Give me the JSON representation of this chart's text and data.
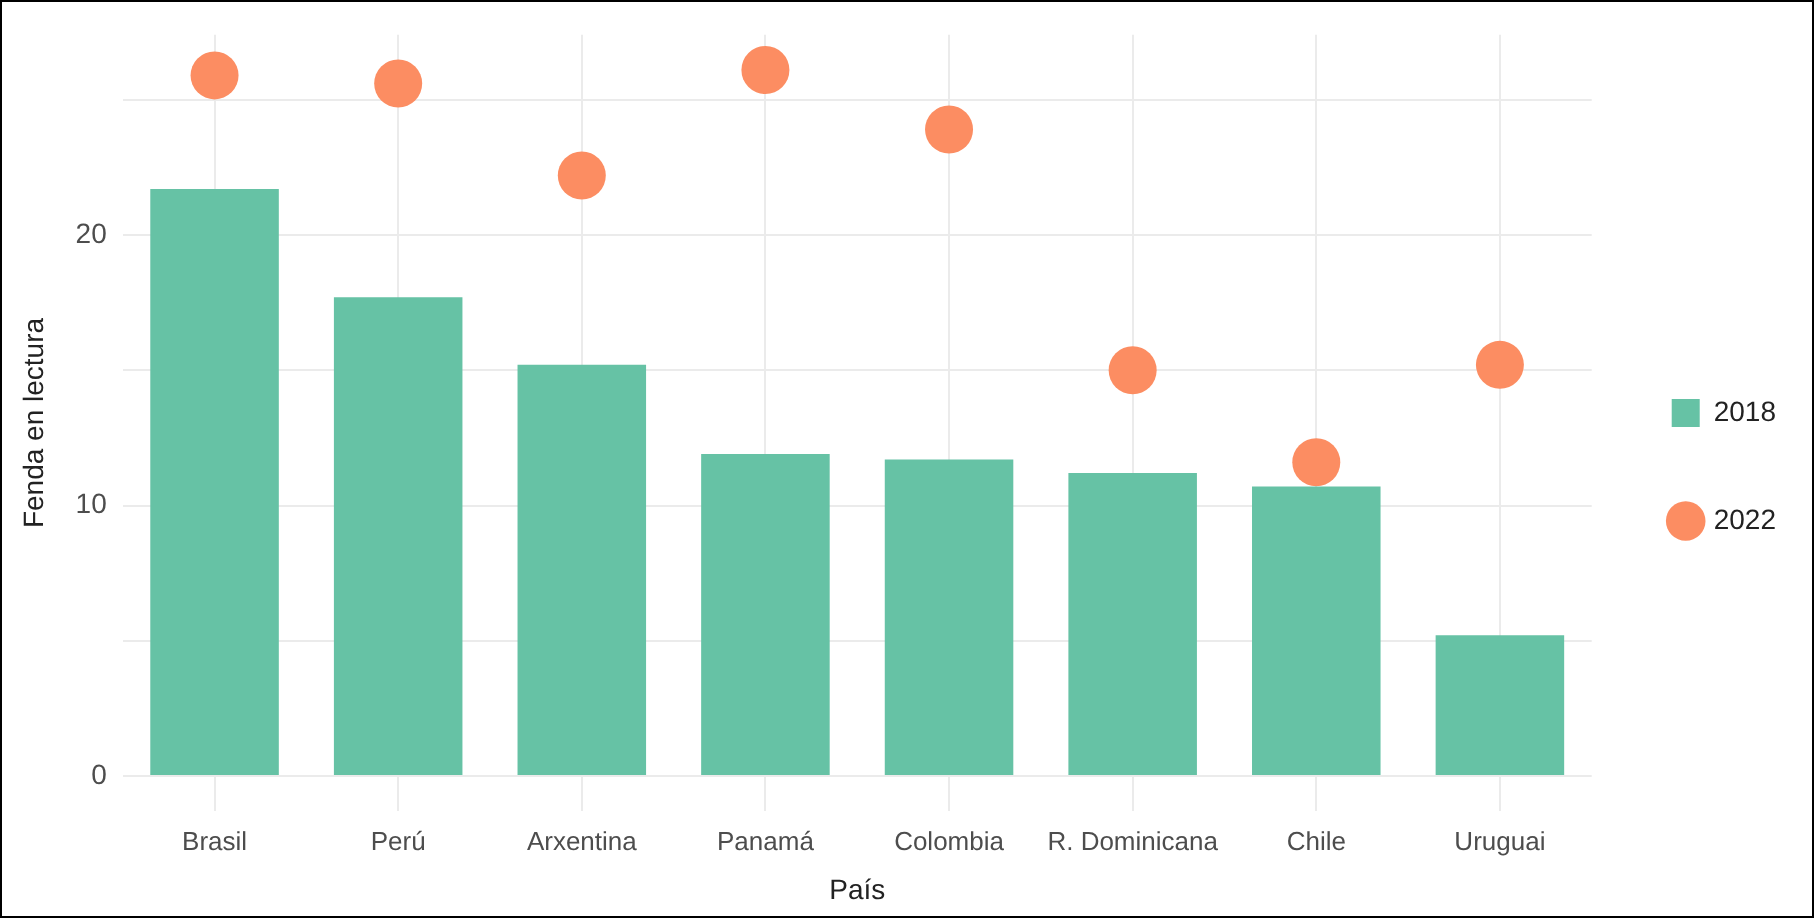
{
  "chart_data": {
    "type": "bar",
    "xlabel": "País",
    "ylabel": "Fenda en lectura",
    "categories": [
      "Brasil",
      "Perú",
      "Arxentina",
      "Panamá",
      "Colombia",
      "R. Dominicana",
      "Chile",
      "Uruguai"
    ],
    "series": [
      {
        "name": "2018",
        "color": "#66c2a5",
        "values": [
          21.7,
          17.7,
          15.2,
          11.9,
          11.7,
          11.2,
          10.7,
          5.2
        ]
      },
      {
        "name": "2022",
        "type": "scatter",
        "color": "#fc8d62",
        "x": [
          "Brasil",
          "Perú",
          "Arxentina",
          "Panamá",
          "Colombia",
          "R. Dominicana",
          "Chile",
          "Uruguai"
        ],
        "values": [
          25.9,
          25.6,
          22.2,
          26.1,
          23.9,
          15.0,
          11.6,
          15.2
        ]
      }
    ],
    "ylim": [
      -1.3,
      27.4
    ],
    "yticks": [
      0,
      {
        "value": 5,
        "label": null
      },
      10,
      {
        "value": 15,
        "label": null
      },
      20,
      {
        "value": 25,
        "label": null
      }
    ],
    "grid": true,
    "legend": "right",
    "marker": "circle"
  }
}
